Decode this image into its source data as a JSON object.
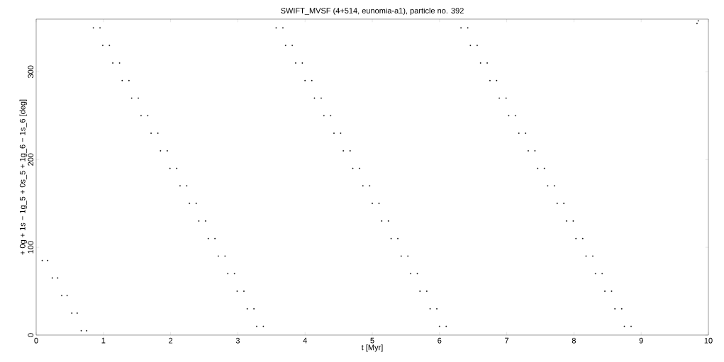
{
  "chart_data": {
    "type": "scatter",
    "title": "SWIFT_MVSF (4+514, eunomia-a1), particle no. 392",
    "xlabel": "t [Myr]",
    "ylabel": "+ 0g + 1s − 1g_5 + 0s_5 + 1g_6 − 1s_6 [deg]",
    "xlim": [
      0,
      10
    ],
    "ylim": [
      0,
      360
    ],
    "xticks": [
      0,
      1,
      2,
      3,
      4,
      5,
      6,
      7,
      8,
      9,
      10
    ],
    "yticks": [
      0,
      100,
      200,
      300
    ],
    "marker": "square",
    "series": [
      {
        "color": "#000000",
        "x": [
          0.09,
          0.17,
          0.24,
          0.32,
          0.38,
          0.46,
          0.53,
          0.61,
          0.67,
          0.75,
          3.28,
          3.38,
          3.14,
          3.24,
          2.99,
          3.09,
          2.85,
          2.95,
          2.71,
          2.81,
          2.56,
          2.66,
          2.42,
          2.52,
          2.28,
          2.38,
          2.14,
          2.24,
          1.99,
          2.09,
          1.85,
          1.95,
          1.71,
          1.81,
          1.56,
          1.66,
          1.42,
          1.52,
          1.28,
          1.38,
          1.14,
          1.24,
          0.99,
          1.09,
          0.85,
          0.95,
          6.0,
          6.1,
          5.86,
          5.96,
          5.71,
          5.81,
          5.57,
          5.67,
          5.43,
          5.53,
          5.28,
          5.38,
          5.14,
          5.24,
          5.0,
          5.1,
          4.86,
          4.96,
          4.71,
          4.81,
          4.57,
          4.67,
          4.43,
          4.53,
          4.28,
          4.38,
          4.14,
          4.24,
          4.0,
          4.1,
          3.86,
          3.96,
          3.71,
          3.81,
          3.57,
          3.67,
          8.75,
          8.85,
          8.61,
          8.71,
          8.46,
          8.56,
          8.32,
          8.42,
          8.18,
          8.28,
          8.03,
          8.13,
          7.89,
          7.99,
          7.75,
          7.85,
          7.61,
          7.71,
          7.46,
          7.56,
          7.32,
          7.42,
          7.18,
          7.28,
          7.03,
          7.13,
          6.89,
          6.99,
          6.75,
          6.85,
          6.61,
          6.71,
          6.46,
          6.56,
          6.32,
          6.42,
          9.83,
          9.85
        ],
        "values": [
          85,
          85,
          65,
          65,
          45,
          45,
          25,
          25,
          5,
          5,
          10,
          10,
          30,
          30,
          50,
          50,
          70,
          70,
          90,
          90,
          110,
          110,
          130,
          130,
          150,
          150,
          170,
          170,
          190,
          190,
          210,
          210,
          230,
          230,
          250,
          250,
          270,
          270,
          290,
          290,
          310,
          310,
          330,
          330,
          350,
          350,
          10,
          10,
          30,
          30,
          50,
          50,
          70,
          70,
          90,
          90,
          110,
          110,
          130,
          130,
          150,
          150,
          170,
          170,
          190,
          190,
          210,
          210,
          230,
          230,
          250,
          250,
          270,
          270,
          290,
          290,
          310,
          310,
          330,
          330,
          350,
          350,
          10,
          10,
          30,
          30,
          50,
          50,
          70,
          70,
          90,
          90,
          110,
          110,
          130,
          130,
          150,
          150,
          170,
          170,
          190,
          190,
          210,
          210,
          230,
          230,
          250,
          250,
          270,
          270,
          290,
          290,
          310,
          310,
          330,
          330,
          350,
          350,
          355,
          358
        ]
      }
    ]
  }
}
